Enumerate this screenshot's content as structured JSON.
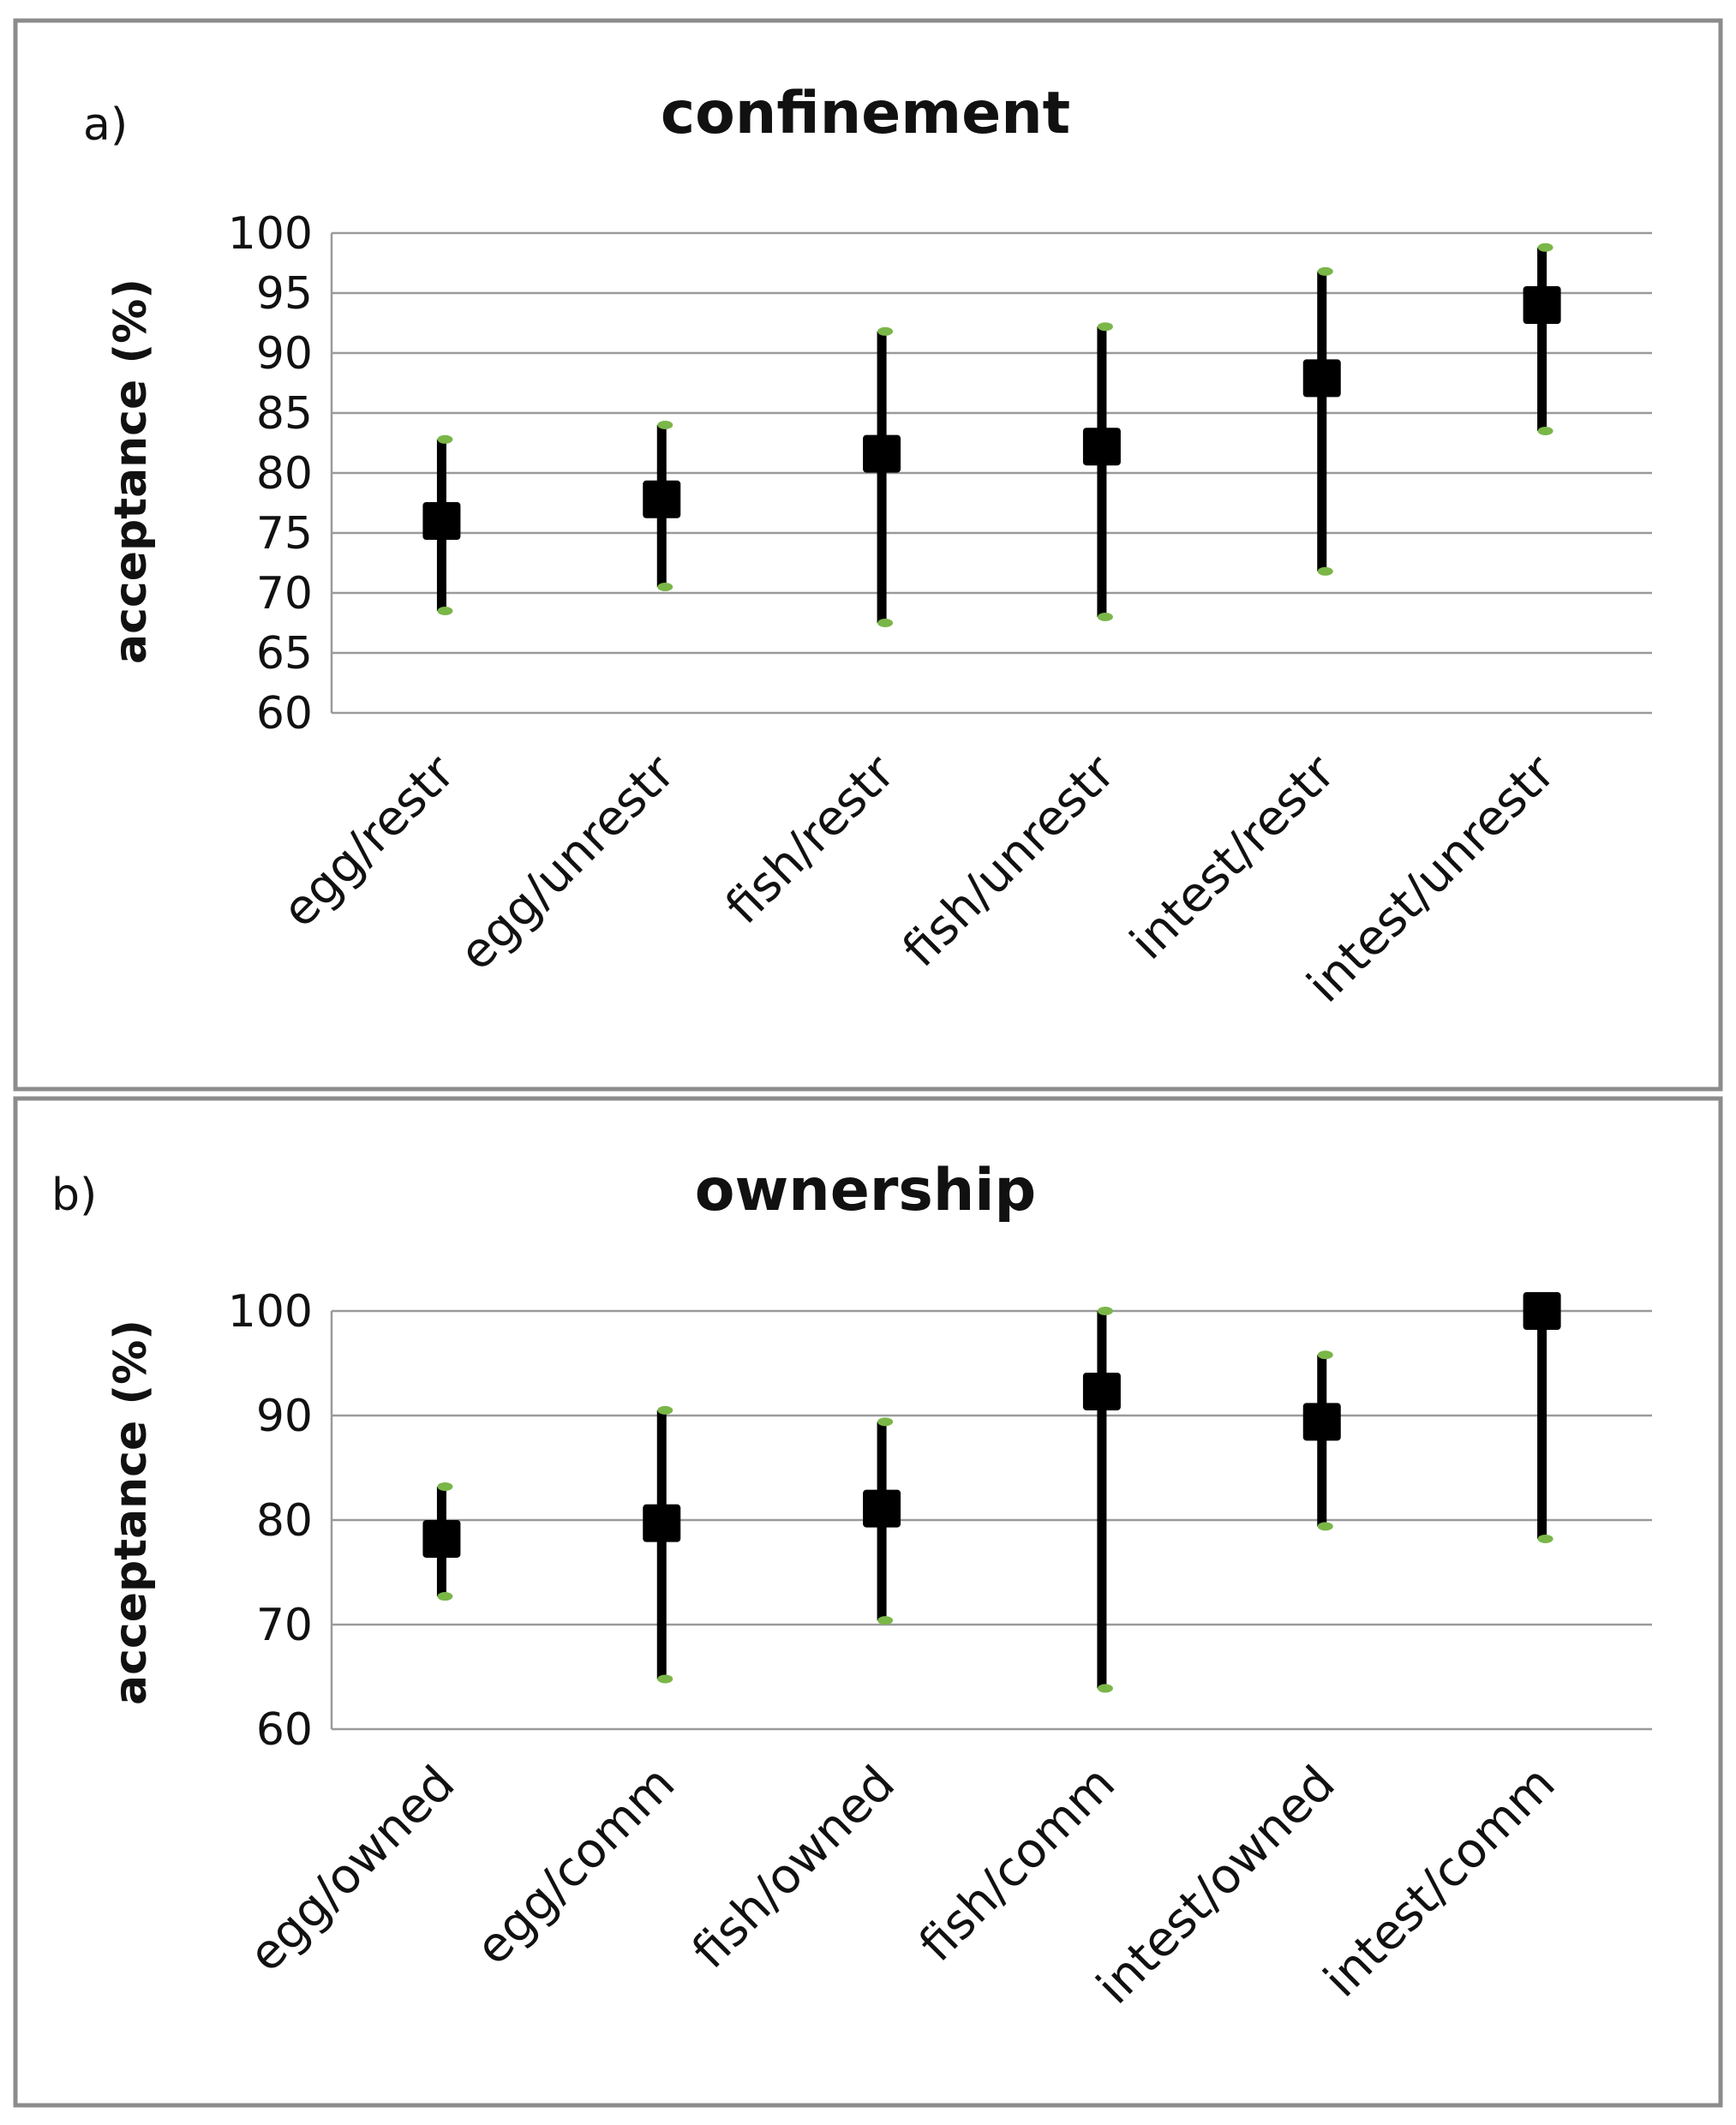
{
  "chart_data": [
    {
      "type": "stock",
      "panel_label": "a)",
      "title": "confinement",
      "xlabel": "",
      "ylabel": "acceptance (%)",
      "ylim": [
        60,
        100
      ],
      "yticks": [
        60,
        65,
        70,
        75,
        80,
        85,
        90,
        95,
        100
      ],
      "grid": true,
      "categories": [
        "egg/restr",
        "egg/unrestr",
        "fish/restr",
        "fish/unrestr",
        "intest/restr",
        "intest/unrestr"
      ],
      "values": [
        76.0,
        77.8,
        81.6,
        82.2,
        87.9,
        94.0
      ],
      "upper": [
        82.8,
        84.0,
        91.8,
        92.2,
        96.8,
        98.8
      ],
      "lower": [
        68.5,
        70.5,
        67.5,
        68.0,
        71.8,
        83.5
      ],
      "marker_color": "#000000",
      "tip_color": "#7ab648"
    },
    {
      "type": "stock",
      "panel_label": "b)",
      "title": "ownership",
      "xlabel": "",
      "ylabel": "acceptance (%)",
      "ylim": [
        60,
        100
      ],
      "yticks": [
        60,
        70,
        80,
        90,
        100
      ],
      "grid": true,
      "categories": [
        "egg/owned",
        "egg/comm",
        "fish/owned",
        "fish/comm",
        "intest/owned",
        "intest/comm"
      ],
      "values": [
        78.2,
        79.7,
        81.1,
        92.3,
        89.4,
        100.0
      ],
      "upper": [
        83.2,
        90.5,
        89.4,
        100.0,
        95.8,
        100.0
      ],
      "lower": [
        72.7,
        64.8,
        70.4,
        63.9,
        79.4,
        78.2
      ],
      "marker_color": "#000000",
      "tip_color": "#7ab648"
    }
  ]
}
